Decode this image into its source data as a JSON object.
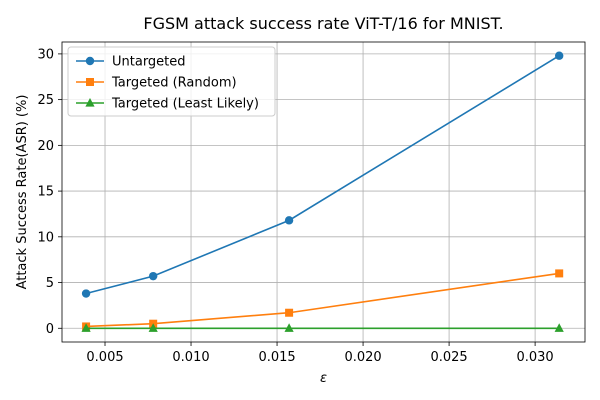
{
  "chart_data": {
    "type": "line",
    "title": "FGSM attack success rate ViT-T/16 for MNIST.",
    "xlabel": "ε",
    "ylabel": "Attack Success Rate(ASR) (%)",
    "xlim": [
      0.0025,
      0.0329
    ],
    "ylim": [
      -1.5,
      31.3
    ],
    "xticks": [
      0.005,
      0.01,
      0.015,
      0.02,
      0.025,
      0.03
    ],
    "xtick_labels": [
      "0.005",
      "0.010",
      "0.015",
      "0.020",
      "0.025",
      "0.030"
    ],
    "yticks": [
      0,
      5,
      10,
      15,
      20,
      25,
      30
    ],
    "ytick_labels": [
      "0",
      "5",
      "10",
      "15",
      "20",
      "25",
      "30"
    ],
    "grid": true,
    "legend_position": "top-left",
    "x": [
      0.0039,
      0.0078,
      0.0157,
      0.0314
    ],
    "series": [
      {
        "name": "Untargeted",
        "values": [
          3.8,
          5.7,
          11.8,
          29.8
        ],
        "color": "#1f77b4",
        "marker": "circle"
      },
      {
        "name": "Targeted (Random)",
        "values": [
          0.2,
          0.5,
          1.7,
          6.0
        ],
        "color": "#ff7f0e",
        "marker": "square"
      },
      {
        "name": "Targeted (Least Likely)",
        "values": [
          0.0,
          0.0,
          0.0,
          0.0
        ],
        "color": "#2ca02c",
        "marker": "triangle"
      }
    ]
  }
}
